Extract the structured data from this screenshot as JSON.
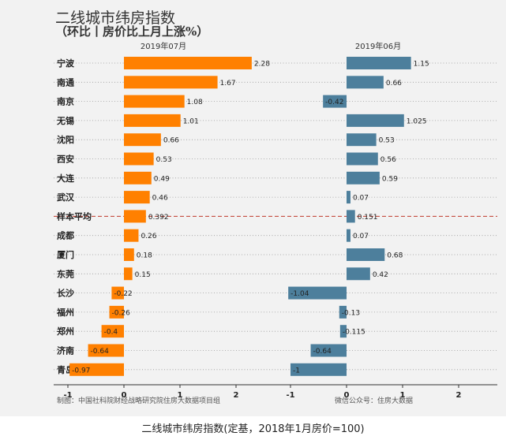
{
  "title": "二线城市纬房指数",
  "subtitle": "（环比丨房价比上月上涨%）",
  "caption": "二线城市纬房指数(定基，2018年1月房价=100)",
  "source_left": "制图：中国社科院财经战略研究院住房大数据项目组",
  "source_right": "微信公众号：住房大数据",
  "colors": {
    "left_bar": "#ff8000",
    "right_bar": "#4d7f9c",
    "avg_line": "#c0392b",
    "background": "#f2f2f2"
  },
  "chart_data": [
    {
      "type": "bar",
      "orientation": "horizontal",
      "title": "2019年07月",
      "categories": [
        "宁波",
        "南通",
        "南京",
        "无锡",
        "沈阳",
        "西安",
        "大连",
        "武汉",
        "样本平均",
        "成都",
        "厦门",
        "东莞",
        "长沙",
        "福州",
        "郑州",
        "济南",
        "青岛"
      ],
      "values": [
        2.28,
        1.67,
        1.08,
        1.01,
        0.66,
        0.53,
        0.49,
        0.46,
        0.392,
        0.26,
        0.18,
        0.15,
        -0.22,
        -0.26,
        -0.4,
        -0.64,
        -0.97
      ],
      "labels": [
        "2.28",
        "1.67",
        "1.08",
        "1.01",
        "0.66",
        "0.53",
        "0.49",
        "0.46",
        "0.392",
        "0.26",
        "0.18",
        "0.15",
        "-0.22",
        "-0.26",
        "-0.4",
        "-0.64",
        "-0.97"
      ],
      "xlim": [
        -1.1,
        2.4
      ],
      "xticks": [
        -1,
        0,
        1,
        2
      ],
      "xtick_labels": [
        "-1",
        "0",
        "1",
        "2"
      ]
    },
    {
      "type": "bar",
      "orientation": "horizontal",
      "title": "2019年06月",
      "categories": [
        "宁波",
        "南通",
        "南京",
        "无锡",
        "沈阳",
        "西安",
        "大连",
        "武汉",
        "样本平均",
        "成都",
        "厦门",
        "东莞",
        "长沙",
        "福州",
        "郑州",
        "济南",
        "青岛"
      ],
      "values": [
        1.15,
        0.66,
        -0.42,
        1.025,
        0.53,
        0.56,
        0.59,
        0.07,
        0.151,
        0.07,
        0.68,
        0.42,
        -1.04,
        -0.13,
        -0.115,
        -0.64,
        -1
      ],
      "labels": [
        "1.15",
        "0.66",
        "-0.42",
        "1.025",
        "0.53",
        "0.56",
        "0.59",
        "0.07",
        "0.151",
        "0.07",
        "0.68",
        "0.42",
        "-1.04",
        "-0.13",
        "-0.115",
        "-0.64",
        "-1"
      ],
      "xlim": [
        -1.2,
        2.3
      ],
      "xticks": [
        -1,
        0,
        1,
        2
      ],
      "xtick_labels": [
        "-1",
        "0",
        "1",
        "2"
      ]
    }
  ]
}
